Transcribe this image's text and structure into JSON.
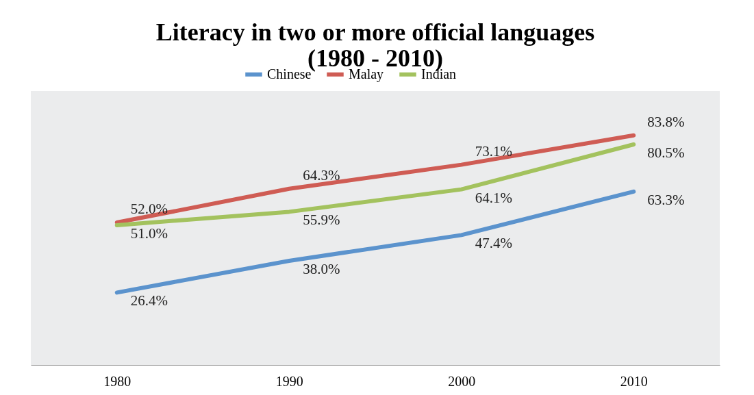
{
  "chart_data": {
    "type": "line",
    "title": [
      "Literacy in two or more official languages",
      "(1980 - 2010)"
    ],
    "categories": [
      "1980",
      "1990",
      "2000",
      "2010"
    ],
    "ylim": [
      0,
      100
    ],
    "tick_labels": "x",
    "grid": false,
    "legend": "top",
    "marker": "none",
    "line_style": "solid",
    "series": [
      {
        "name": "Chinese",
        "color": "#5b93cd",
        "values": [
          26.4,
          38.0,
          47.4,
          63.3
        ],
        "value_labels": [
          "26.4%",
          "38.0%",
          "47.4%",
          "63.3%"
        ]
      },
      {
        "name": "Malay",
        "color": "#cf5c54",
        "values": [
          52.0,
          64.3,
          73.1,
          83.8
        ],
        "value_labels": [
          "52.0%",
          "64.3%",
          "73.1%",
          "83.8%"
        ]
      },
      {
        "name": "Indian",
        "color": "#a3c25e",
        "values": [
          51.0,
          55.9,
          64.1,
          80.5
        ],
        "value_labels": [
          "51.0%",
          "55.9%",
          "64.1%",
          "80.5%"
        ]
      }
    ]
  }
}
